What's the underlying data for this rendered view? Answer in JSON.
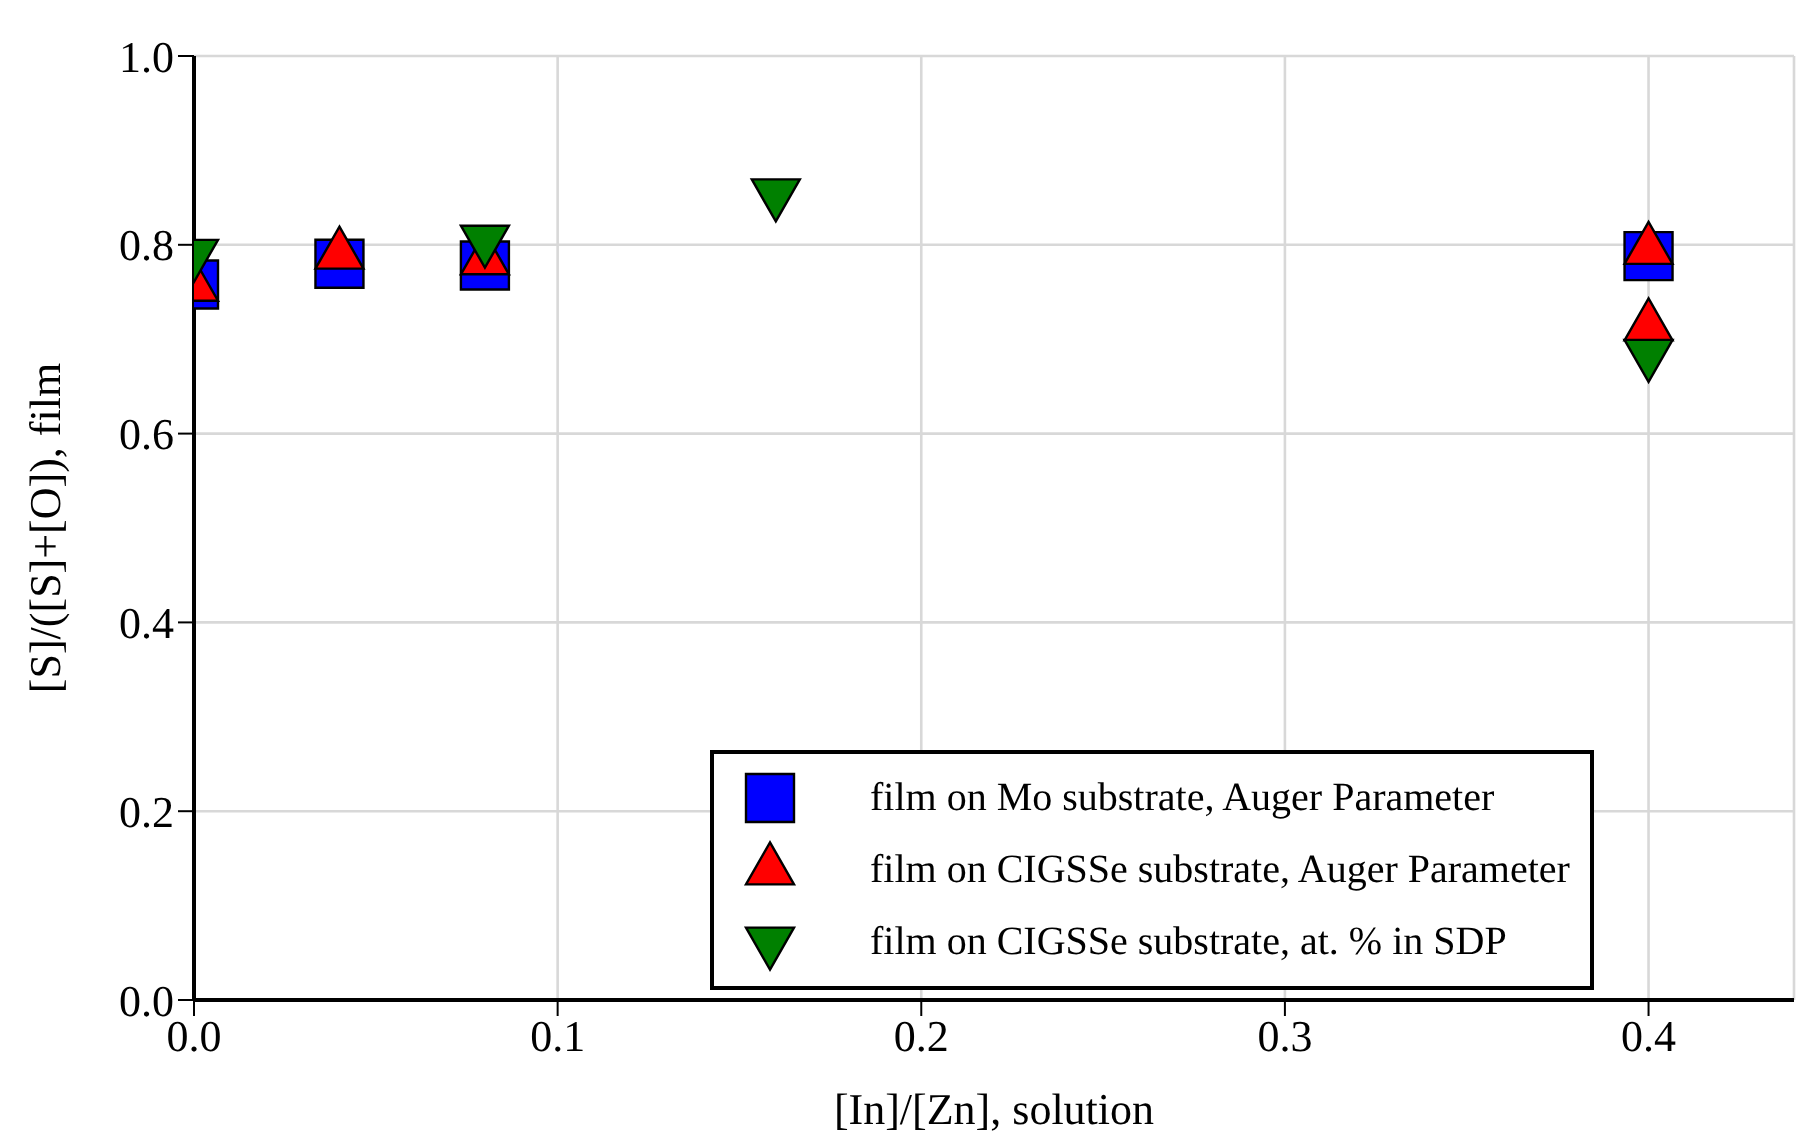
{
  "chart_data": {
    "type": "scatter",
    "xlabel": "[In]/[Zn], solution",
    "ylabel": "[S]/([S]+[O]), film",
    "xlim": [
      0,
      0.44
    ],
    "xticks": [
      {
        "value": 0,
        "label": "0.0"
      },
      0.1,
      0.2,
      0.3,
      0.4
    ],
    "ylim": [
      0,
      1
    ],
    "yticks": [
      {
        "value": 0,
        "label": "0.0"
      },
      0.2,
      0.4,
      0.6,
      0.8,
      {
        "value": 1,
        "label": "1.0"
      }
    ],
    "grid": true,
    "legend": "bottom right",
    "series": [
      {
        "name": "film on Mo substrate, Auger Parameter",
        "color": "#0000ff",
        "marker": "square",
        "x": [
          0,
          0.04,
          0.08,
          0.4
        ],
        "values": [
          0.758,
          0.78,
          0.778,
          0.788
        ]
      },
      {
        "name": "film on CIGSSe substrate, Auger Parameter",
        "color": "#ff0000",
        "marker": "triangle",
        "x": [
          0,
          0.04,
          0.08,
          0.4,
          0.4
        ],
        "values": [
          0.756,
          0.79,
          0.784,
          0.795,
          0.714
        ]
      },
      {
        "name": "film on CIGSSe substrate, at. % in SDP",
        "color": "#008000",
        "marker": "triangle_down",
        "x": [
          0,
          0.08,
          0.16,
          0.4
        ],
        "values": [
          0.79,
          0.805,
          0.854,
          0.684
        ]
      }
    ]
  }
}
